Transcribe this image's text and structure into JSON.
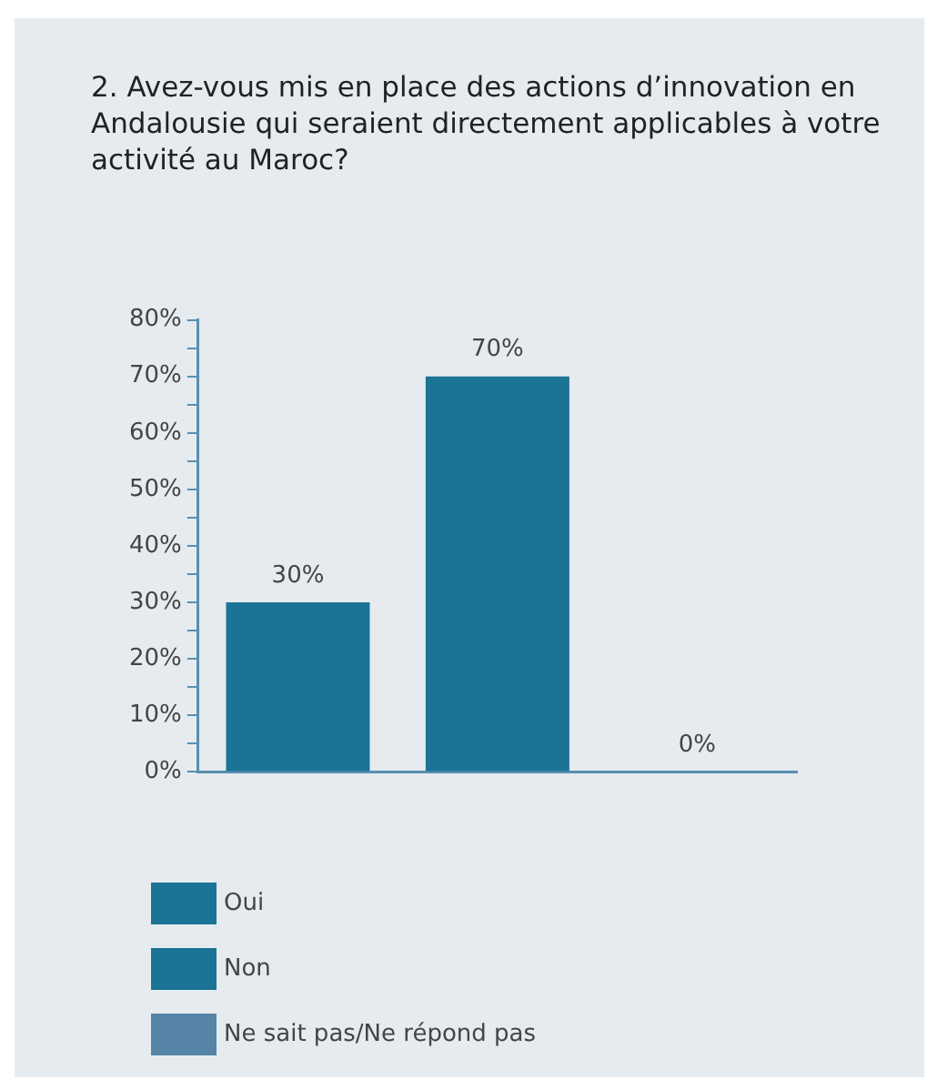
{
  "chart_data": {
    "type": "bar",
    "title": "2. Avez-vous mis en place des actions d’innovation en Andalousie qui seraient directement applicables à votre activité au Maroc?",
    "categories": [
      null,
      null,
      null
    ],
    "series": [
      {
        "name": "Oui",
        "color": "#1b7396",
        "values": [
          30,
          null,
          null
        ],
        "value_labels": [
          "30%",
          null,
          null
        ]
      },
      {
        "name": "Non",
        "color": "#1b7396",
        "values": [
          null,
          70,
          null
        ],
        "value_labels": [
          null,
          "70%",
          null
        ]
      },
      {
        "name": "Ne sait pas/Ne répond pas",
        "color": "#5584a6",
        "values": [
          null,
          null,
          0
        ],
        "value_labels": [
          null,
          null,
          "0%"
        ]
      }
    ],
    "ylim": [
      0,
      80
    ],
    "yticks": [
      {
        "value": 0,
        "label": "0%"
      },
      {
        "value": 5,
        "label": null
      },
      {
        "value": 10,
        "label": "10%"
      },
      {
        "value": 15,
        "label": null
      },
      {
        "value": 20,
        "label": "20%"
      },
      {
        "value": 25,
        "label": null
      },
      {
        "value": 30,
        "label": "30%"
      },
      {
        "value": 35,
        "label": null
      },
      {
        "value": 40,
        "label": "40%"
      },
      {
        "value": 45,
        "label": null
      },
      {
        "value": 50,
        "label": "50%"
      },
      {
        "value": 55,
        "label": null
      },
      {
        "value": 60,
        "label": "60%"
      },
      {
        "value": 65,
        "label": null
      },
      {
        "value": 70,
        "label": "70%"
      },
      {
        "value": 75,
        "label": null
      },
      {
        "value": 80,
        "label": "80%"
      }
    ],
    "grid": false,
    "legend": "bottom"
  }
}
